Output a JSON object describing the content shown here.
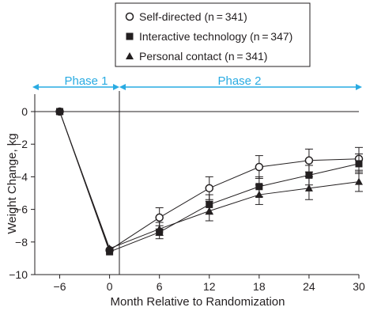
{
  "chart_data": {
    "type": "line",
    "title": "",
    "xlabel": "Month Relative to Randomization",
    "ylabel": "Weight Change, kg",
    "x": [
      -6,
      0,
      6,
      12,
      18,
      24,
      30
    ],
    "xticks": [
      "−6",
      "0",
      "6",
      "12",
      "18",
      "24",
      "30"
    ],
    "xlim": [
      -9,
      30
    ],
    "yticks": [
      {
        "value": 0,
        "label": "0"
      },
      {
        "value": -2,
        "label": "−2"
      },
      {
        "value": -4,
        "label": "−4"
      },
      {
        "value": -6,
        "label": "−6"
      },
      {
        "value": -8,
        "label": "−8"
      },
      {
        "value": -10,
        "label": "−10"
      }
    ],
    "ylim": [
      -10,
      1
    ],
    "grid": false,
    "legend_position": "top",
    "phases": [
      {
        "label": "Phase 1",
        "from": -9,
        "to": 0
      },
      {
        "label": "Phase 2",
        "from": 0,
        "to": 30
      }
    ],
    "phase_color": "#29abe2",
    "series": [
      {
        "name": "Self-directed (n = 341)",
        "marker": "circle-open",
        "values": [
          0,
          -8.5,
          -6.5,
          -4.7,
          -3.4,
          -3.0,
          -2.9
        ],
        "err_low": [
          null,
          null,
          -7.2,
          -5.4,
          -4.1,
          -3.7,
          -3.6
        ],
        "err_high": [
          null,
          null,
          -5.9,
          -4.0,
          -2.7,
          -2.3,
          -2.2
        ]
      },
      {
        "name": "Interactive technology (n = 347)",
        "marker": "square-filled",
        "values": [
          0,
          -8.6,
          -7.4,
          -5.7,
          -4.6,
          -3.9,
          -3.2
        ],
        "err_low": [
          null,
          null,
          -7.8,
          -6.3,
          -5.2,
          -4.5,
          -3.8
        ],
        "err_high": [
          null,
          null,
          -7.0,
          -5.1,
          -4.0,
          -3.3,
          -2.6
        ]
      },
      {
        "name": "Personal contact (n = 341)",
        "marker": "triangle-filled",
        "values": [
          0,
          -8.4,
          -7.2,
          -6.1,
          -5.1,
          -4.7,
          -4.3
        ],
        "err_low": [
          null,
          null,
          -7.6,
          -6.7,
          -5.7,
          -5.4,
          -4.9
        ],
        "err_high": [
          null,
          null,
          -6.8,
          -5.5,
          -4.5,
          -4.0,
          -3.7
        ]
      }
    ]
  }
}
